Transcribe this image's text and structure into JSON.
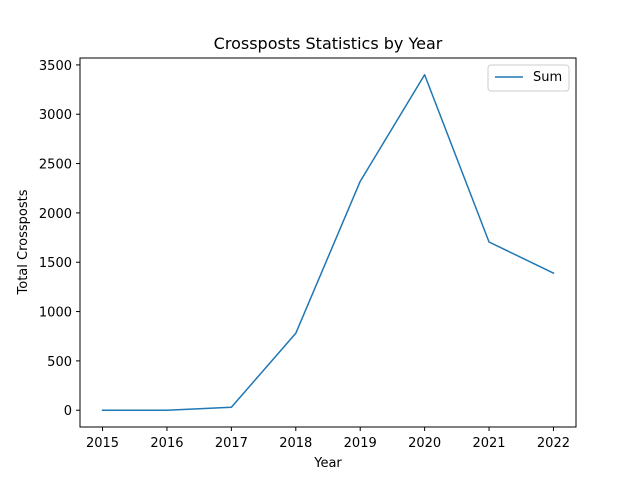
{
  "chart_data": {
    "type": "line",
    "title": "Crossposts Statistics by Year",
    "xlabel": "Year",
    "ylabel": "Total Crossposts",
    "x": [
      2015,
      2016,
      2017,
      2018,
      2019,
      2020,
      2021,
      2022
    ],
    "series": [
      {
        "name": "Sum",
        "color": "#1f77b4",
        "values": [
          0,
          0,
          30,
          780,
          2320,
          3400,
          1705,
          1390
        ]
      }
    ],
    "xlim": [
      2014.65,
      2022.35
    ],
    "ylim": [
      -170,
      3570
    ],
    "xticks": [
      2015,
      2016,
      2017,
      2018,
      2019,
      2020,
      2021,
      2022
    ],
    "yticks": [
      0,
      500,
      1000,
      1500,
      2000,
      2500,
      3000,
      3500
    ],
    "grid": false,
    "legend_position": "top-right"
  }
}
